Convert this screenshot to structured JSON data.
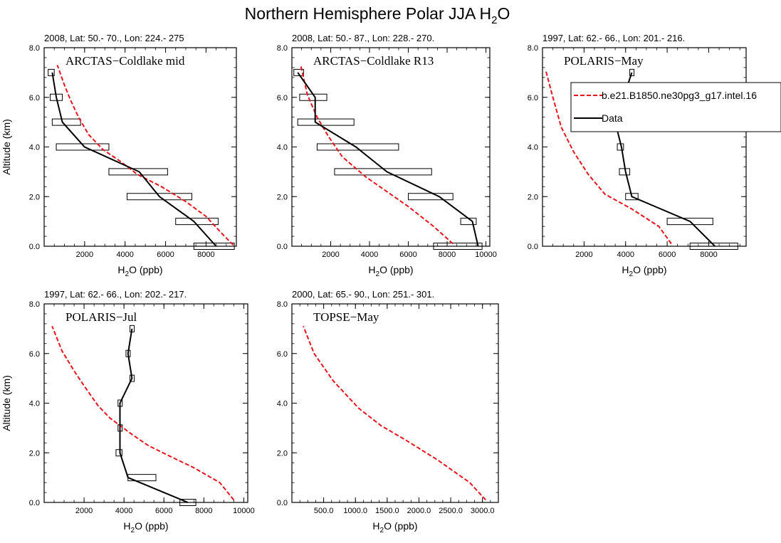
{
  "figure": {
    "title_main": "Northern Hemisphere Polar JJA H",
    "title_sub": "2",
    "title_end": "O",
    "model_color": "#e8141b",
    "data_color": "#000000"
  },
  "legend": {
    "model_label": "b.e21.B1850.ne30pg3_g17.intel.16",
    "data_label": "Data",
    "location": "upper-right of panel 3"
  },
  "chart_data": [
    {
      "type": "line",
      "header": "2008, Lat:  50.- 70., Lon: 224.- 275",
      "campaign": "ARCTAS−Coldlake mid",
      "xlabel": "(ppb)",
      "ylabel": "Altitude (km)",
      "xlim": [
        0,
        9500
      ],
      "ylim": [
        0,
        8
      ],
      "xticks": [
        2000,
        4000,
        6000,
        8000
      ],
      "xticklabels": [
        "2000",
        "4000",
        "6000",
        "8000"
      ],
      "yticks": [
        0,
        2,
        4,
        6,
        8
      ],
      "yticklabels": [
        "0.0",
        "2.0",
        "4.0",
        "6.0",
        "8.0"
      ],
      "model": [
        [
          9350,
          0.05
        ],
        [
          8800,
          0.5
        ],
        [
          8000,
          1.2
        ],
        [
          7000,
          1.8
        ],
        [
          5800,
          2.4
        ],
        [
          4600,
          2.9
        ],
        [
          3800,
          3.4
        ],
        [
          2900,
          3.9
        ],
        [
          2200,
          4.5
        ],
        [
          1700,
          5.2
        ],
        [
          1300,
          5.9
        ],
        [
          1000,
          6.5
        ],
        [
          650,
          7.3
        ]
      ],
      "obs": [
        [
          8500,
          0
        ],
        [
          7400,
          1
        ],
        [
          5700,
          2
        ],
        [
          4700,
          3
        ],
        [
          2000,
          4
        ],
        [
          900,
          5
        ],
        [
          600,
          6
        ],
        [
          400,
          7
        ]
      ],
      "boxes": [
        [
          7400,
          9400,
          0
        ],
        [
          6500,
          8600,
          1
        ],
        [
          4100,
          7300,
          2
        ],
        [
          3200,
          6100,
          3
        ],
        [
          600,
          3200,
          4
        ],
        [
          400,
          1800,
          5
        ],
        [
          300,
          900,
          6
        ],
        [
          200,
          500,
          7
        ]
      ]
    },
    {
      "type": "line",
      "header": "2008, Lat:  50.- 87., Lon: 228.- 270.",
      "campaign": "ARCTAS−Coldlake R13",
      "xlabel": "(ppb)",
      "ylabel": "",
      "xlim": [
        0,
        10200
      ],
      "ylim": [
        0,
        8
      ],
      "xticks": [
        2000,
        4000,
        6000,
        8000,
        10000
      ],
      "xticklabels": [
        "2000",
        "4000",
        "6000",
        "8000",
        "10000"
      ],
      "yticks": [
        0,
        2,
        4,
        6,
        8
      ],
      "yticklabels": [
        "0.0",
        "2.0",
        "4.0",
        "6.0",
        "8.0"
      ],
      "model": [
        [
          8300,
          0.1
        ],
        [
          7300,
          0.8
        ],
        [
          6000,
          1.6
        ],
        [
          4900,
          2.2
        ],
        [
          3800,
          2.8
        ],
        [
          2600,
          3.6
        ],
        [
          1900,
          4.4
        ],
        [
          1300,
          5.2
        ],
        [
          800,
          6.1
        ],
        [
          450,
          7.3
        ]
      ],
      "obs": [
        [
          9600,
          0
        ],
        [
          9300,
          1
        ],
        [
          7600,
          2
        ],
        [
          4900,
          3
        ],
        [
          3300,
          4
        ],
        [
          1200,
          5
        ],
        [
          1200,
          6
        ],
        [
          300,
          7
        ]
      ],
      "boxes": [
        [
          7300,
          9800,
          0
        ],
        [
          8700,
          9500,
          1
        ],
        [
          6000,
          8300,
          2
        ],
        [
          2200,
          7200,
          3
        ],
        [
          1300,
          5500,
          4
        ],
        [
          300,
          3200,
          5
        ],
        [
          400,
          1800,
          6
        ],
        [
          100,
          600,
          7
        ]
      ]
    },
    {
      "type": "line",
      "header": "1997, Lat: 62.- 66., Lon: 201.- 216.",
      "campaign": "POLARIS−May",
      "xlabel": "(ppb)",
      "ylabel": "",
      "xlim": [
        0,
        9800
      ],
      "ylim": [
        0,
        8
      ],
      "xticks": [
        2000,
        4000,
        6000,
        8000
      ],
      "xticklabels": [
        "2000",
        "4000",
        "6000",
        "8000"
      ],
      "yticks": [
        0,
        2,
        4,
        6,
        8
      ],
      "yticklabels": [
        "0.0",
        "2.0",
        "4.0",
        "6.0",
        "8.0"
      ],
      "model": [
        [
          6200,
          0.1
        ],
        [
          5600,
          0.8
        ],
        [
          4300,
          1.5
        ],
        [
          3000,
          2.1
        ],
        [
          2200,
          2.9
        ],
        [
          1500,
          3.8
        ],
        [
          900,
          4.8
        ],
        [
          500,
          6.0
        ],
        [
          150,
          7.1
        ]
      ],
      "obs": [
        [
          8300,
          0
        ],
        [
          7100,
          1
        ],
        [
          4300,
          2
        ],
        [
          4000,
          3
        ],
        [
          3800,
          4
        ],
        [
          3500,
          5
        ],
        [
          3900,
          6
        ],
        [
          4300,
          7
        ]
      ],
      "boxes": [
        [
          7100,
          9400,
          0
        ],
        [
          6000,
          8200,
          1
        ],
        [
          4000,
          4600,
          2
        ],
        [
          3700,
          4200,
          3
        ],
        [
          3600,
          3900,
          4
        ],
        [
          3400,
          3700,
          5
        ],
        [
          3800,
          4000,
          6
        ],
        [
          4200,
          4400,
          7
        ]
      ]
    },
    {
      "type": "line",
      "header": "1997, Lat: 62.- 66., Lon: 202.- 217.",
      "campaign": "POLARIS−Jul",
      "xlabel": "(ppb)",
      "ylabel": "Altitude (km)",
      "xlim": [
        0,
        10200
      ],
      "ylim": [
        0,
        8
      ],
      "xticks": [
        2000,
        4000,
        6000,
        8000,
        10000
      ],
      "xticklabels": [
        "2000",
        "4000",
        "6000",
        "8000",
        "10000"
      ],
      "yticks": [
        0,
        2,
        4,
        6,
        8
      ],
      "yticklabels": [
        "0.0",
        "2.0",
        "4.0",
        "6.0",
        "8.0"
      ],
      "model": [
        [
          9500,
          0.1
        ],
        [
          8800,
          0.8
        ],
        [
          7500,
          1.4
        ],
        [
          6200,
          1.9
        ],
        [
          5200,
          2.3
        ],
        [
          4300,
          2.8
        ],
        [
          3300,
          3.4
        ],
        [
          2700,
          3.9
        ],
        [
          2000,
          4.7
        ],
        [
          1500,
          5.3
        ],
        [
          900,
          6.1
        ],
        [
          400,
          7.1
        ]
      ],
      "obs": [
        [
          7200,
          0
        ],
        [
          4200,
          1
        ],
        [
          3800,
          2
        ],
        [
          3800,
          3
        ],
        [
          3800,
          4
        ],
        [
          4400,
          5
        ],
        [
          4200,
          6
        ],
        [
          4400,
          7
        ]
      ],
      "boxes": [
        [
          6800,
          7600,
          0
        ],
        [
          4200,
          5600,
          1
        ],
        [
          3600,
          3900,
          2
        ],
        [
          3700,
          3900,
          3
        ],
        [
          3700,
          3900,
          4
        ],
        [
          4300,
          4500,
          5
        ],
        [
          4100,
          4300,
          6
        ],
        [
          4300,
          4500,
          7
        ]
      ]
    },
    {
      "type": "line",
      "header": "2000, Lat: 65.- 90., Lon: 251.- 301.",
      "campaign": "TOPSE−May",
      "xlabel": "(ppb)",
      "ylabel": "",
      "xlim": [
        0,
        3250
      ],
      "ylim": [
        0,
        8
      ],
      "xticks": [
        500,
        1000,
        1500,
        2000,
        2500,
        3000
      ],
      "xticklabels": [
        "500.0",
        "1000.0",
        "1500.0",
        "2000.0",
        "2500.0",
        "3000.0"
      ],
      "yticks": [
        0,
        2,
        4,
        6,
        8
      ],
      "yticklabels": [
        "0.0",
        "2.0",
        "4.0",
        "6.0",
        "8.0"
      ],
      "model": [
        [
          3050,
          0.1
        ],
        [
          2800,
          0.8
        ],
        [
          2300,
          1.7
        ],
        [
          1800,
          2.5
        ],
        [
          1400,
          3.1
        ],
        [
          1050,
          3.8
        ],
        [
          650,
          4.9
        ],
        [
          350,
          6.0
        ],
        [
          180,
          7.1
        ]
      ],
      "obs": [],
      "boxes": []
    }
  ]
}
